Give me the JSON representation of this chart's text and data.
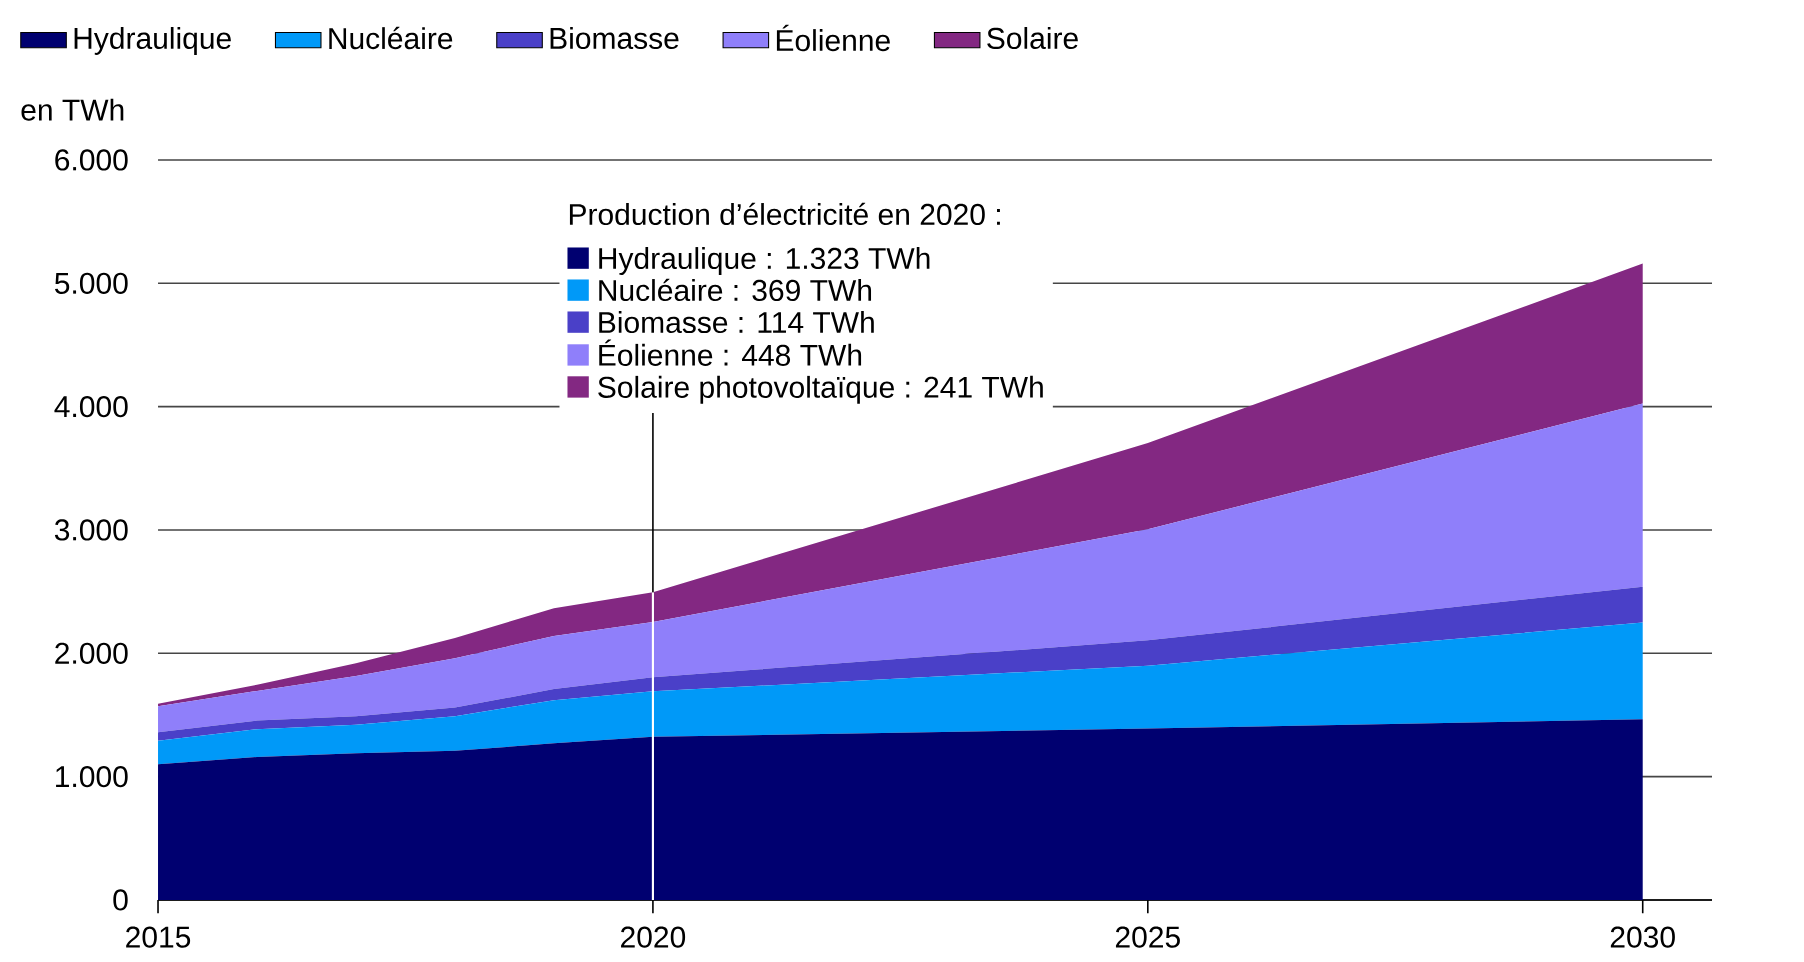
{
  "chart_data": {
    "type": "area",
    "stacked": true,
    "ylabel": "en TWh",
    "x": [
      2015,
      2016,
      2017,
      2018,
      2019,
      2020,
      2025,
      2030
    ],
    "series": [
      {
        "name": "Hydraulique",
        "color": "#000070",
        "values": [
          1100,
          1160,
          1190,
          1210,
          1270,
          1323,
          1390,
          1465
        ]
      },
      {
        "name": "Nucléaire",
        "color": "#0099f8",
        "values": [
          190,
          225,
          230,
          280,
          350,
          369,
          510,
          785
        ]
      },
      {
        "name": "Biomasse",
        "color": "#4a40c8",
        "values": [
          70,
          70,
          70,
          70,
          90,
          114,
          205,
          290
        ]
      },
      {
        "name": "Éolienne",
        "color": "#8f7ffa",
        "values": [
          210,
          240,
          325,
          400,
          430,
          448,
          900,
          1485
        ]
      },
      {
        "name": "Solaire",
        "color": "#832882",
        "values": [
          20,
          50,
          105,
          165,
          225,
          241,
          700,
          1135
        ]
      }
    ],
    "xlim": [
      2015,
      2030.7
    ],
    "xticks": [
      2015,
      2020,
      2025,
      2030
    ],
    "ylim": [
      0,
      6000
    ],
    "yticks": [
      {
        "value": 0,
        "label": "0"
      },
      {
        "value": 1000,
        "label": "1.000"
      },
      {
        "value": 2000,
        "label": "2.000"
      },
      {
        "value": 3000,
        "label": "3.000"
      },
      {
        "value": 4000,
        "label": "4.000"
      },
      {
        "value": 5000,
        "label": "5.000"
      },
      {
        "value": 6000,
        "label": "6.000"
      }
    ],
    "grid": "y",
    "legend": "top",
    "ref_lines": [
      {
        "axis": "x",
        "value": 2020,
        "color": "#ffffff"
      }
    ],
    "annotations": [
      "Production d’électricité en 2020 :",
      "Hydraulique : 1.323 TWh",
      "Nucléaire : 369 TWh",
      "Biomasse : 114 TWh",
      "Éolienne : 448 TWh",
      {
        "text": "Solaire photovoltaïque : 241 TWh",
        "x": 2020,
        "y": 2495
      }
    ]
  }
}
